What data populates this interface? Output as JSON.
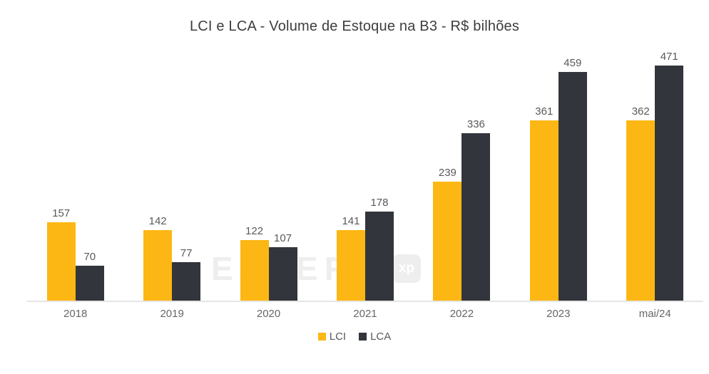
{
  "title": "LCI e LCA - Volume de Estoque na B3 - R$ bilhões",
  "watermark": {
    "text": "EXPERT",
    "badge": "xp"
  },
  "colors": {
    "lci": "#FDB714",
    "lca": "#32353B",
    "axis_line": "#e5e5e5",
    "value_label": "#595959",
    "axis_label": "#666666",
    "title_text": "#3d3d3d",
    "watermark": "#eeeeee",
    "background": "#ffffff"
  },
  "chart_data": {
    "type": "bar",
    "title": "LCI e LCA - Volume de Estoque na B3 - R$ bilhões",
    "categories": [
      "2018",
      "2019",
      "2020",
      "2021",
      "2022",
      "2023",
      "mai/24"
    ],
    "series": [
      {
        "name": "LCI",
        "color": "#FDB714",
        "values": [
          157,
          142,
          122,
          141,
          239,
          361,
          362
        ]
      },
      {
        "name": "LCA",
        "color": "#32353B",
        "values": [
          70,
          77,
          107,
          178,
          336,
          459,
          471
        ]
      }
    ],
    "xlabel": "",
    "ylabel": "",
    "ylim": [
      0,
      500
    ],
    "grid": false,
    "y_axis_visible": false,
    "data_labels": true,
    "legend_position": "bottom"
  }
}
